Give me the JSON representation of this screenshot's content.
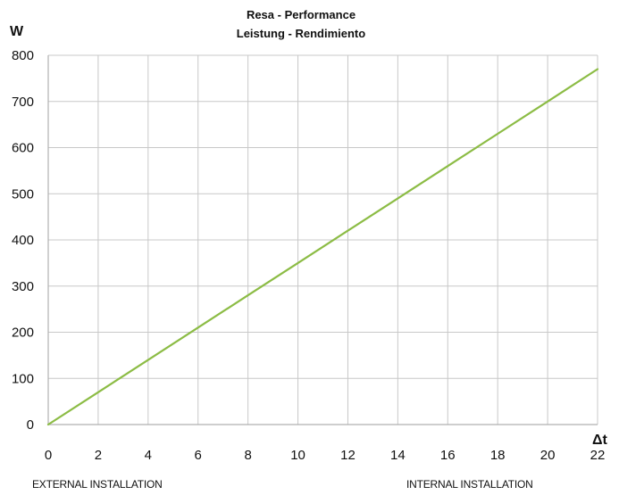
{
  "chart_data": {
    "type": "line",
    "title": "Resa - Performance",
    "subtitle": "Leistung - Rendimiento",
    "xlabel": "Δt",
    "ylabel": "W",
    "xlim": [
      0,
      22
    ],
    "ylim": [
      0,
      800
    ],
    "x_ticks": [
      "0",
      "2",
      "4",
      "6",
      "8",
      "10",
      "12",
      "14",
      "16",
      "18",
      "20",
      "22"
    ],
    "y_ticks": [
      "0",
      "100",
      "200",
      "300",
      "400",
      "500",
      "600",
      "700",
      "800"
    ],
    "grid": true,
    "series": [
      {
        "x": [
          0,
          2,
          4,
          6,
          8,
          10,
          12,
          14,
          16,
          18,
          20,
          22
        ],
        "values": [
          0,
          70,
          140,
          210,
          280,
          350,
          420,
          490,
          560,
          630,
          700,
          770
        ]
      }
    ],
    "colors": {
      "line": "#8cbc45",
      "grid": "#c8c8c8",
      "axis": "#b0b0b0"
    }
  },
  "footer": {
    "left_label": "EXTERNAL INSTALLATION",
    "right_label": "INTERNAL INSTALLATION"
  }
}
